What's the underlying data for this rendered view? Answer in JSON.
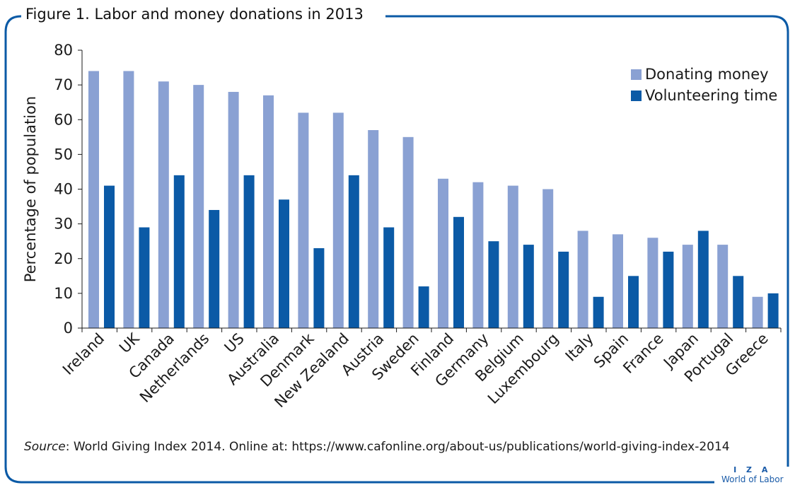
{
  "figure": {
    "title": "Figure 1. Labor and money donations in 2013",
    "source_label": "Source",
    "source_text": ": World Giving Index 2014. Online at: https://www.cafonline.org/about-us/publications/world-giving-index-2014",
    "brand_line1": "I Z A",
    "brand_line2": "World of Labor"
  },
  "colors": {
    "frame": "#0b5aa6",
    "donating": "#8aa1d3",
    "volunteering": "#0b5aa6",
    "axis": "#1a1a1a"
  },
  "chart_data": {
    "type": "bar",
    "ylabel": "Percentage of population",
    "xlabel": "",
    "ylim": [
      0,
      80
    ],
    "yticks": [
      0,
      10,
      20,
      30,
      40,
      50,
      60,
      70,
      80
    ],
    "grid": false,
    "legend_position": "top-right",
    "categories": [
      "Ireland",
      "UK",
      "Canada",
      "Netherlands",
      "US",
      "Australia",
      "Denmark",
      "New Zealand",
      "Austria",
      "Sweden",
      "Finland",
      "Germany",
      "Belgium",
      "Luxembourg",
      "Italy",
      "Spain",
      "France",
      "Japan",
      "Portugal",
      "Greece"
    ],
    "series": [
      {
        "name": "Donating money",
        "values": [
          74,
          74,
          71,
          70,
          68,
          67,
          62,
          62,
          57,
          55,
          43,
          42,
          41,
          40,
          28,
          27,
          26,
          24,
          24,
          9
        ]
      },
      {
        "name": "Volunteering time",
        "values": [
          41,
          29,
          44,
          34,
          44,
          37,
          23,
          44,
          29,
          12,
          32,
          25,
          24,
          22,
          9,
          15,
          22,
          28,
          15,
          10
        ]
      }
    ]
  }
}
